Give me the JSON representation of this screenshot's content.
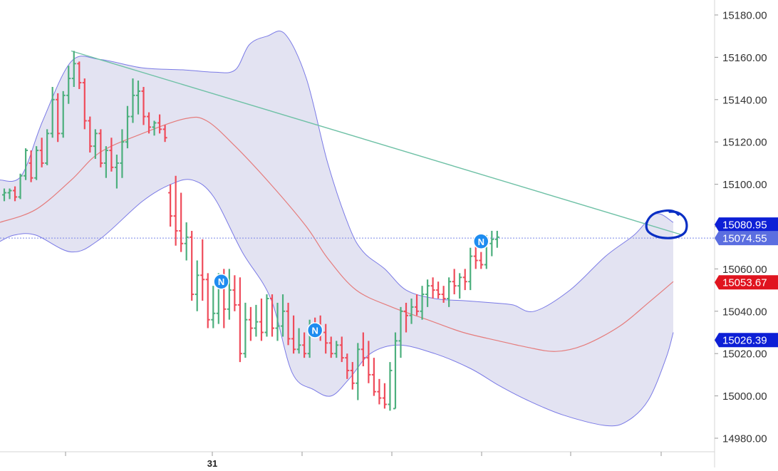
{
  "chart_data": {
    "type": "ohlc",
    "title": "",
    "x_axis": {
      "labels": [
        "31"
      ]
    },
    "y_axis": {
      "position": "right",
      "ylim": [
        14975,
        15188
      ],
      "ticks": [
        14980,
        15000,
        15020,
        15040,
        15060,
        15080,
        15100,
        15120,
        15140,
        15160,
        15180
      ],
      "tick_labels": [
        "14980.00",
        "15000.00",
        "15020.00",
        "15040.00",
        "15060.00",
        "15080.00",
        "15100.00",
        "15120.00",
        "15140.00",
        "15160.00",
        "15180.00"
      ]
    },
    "bars_ohlc": [
      [
        15095,
        15098,
        15092,
        15096
      ],
      [
        15096,
        15098,
        15093,
        15097
      ],
      [
        15097,
        15099,
        15092,
        15094
      ],
      [
        15094,
        15105,
        15093,
        15104
      ],
      [
        15104,
        15117,
        15102,
        15116
      ],
      [
        15110,
        15116,
        15101,
        15103
      ],
      [
        15103,
        15118,
        15102,
        15116
      ],
      [
        15116,
        15122,
        15108,
        15110
      ],
      [
        15110,
        15126,
        15109,
        15124
      ],
      [
        15124,
        15146,
        15122,
        15140
      ],
      [
        15140,
        15143,
        15120,
        15124
      ],
      [
        15124,
        15144,
        15122,
        15142
      ],
      [
        15142,
        15156,
        15138,
        15150
      ],
      [
        15150,
        15163,
        15146,
        15157
      ],
      [
        15157,
        15158,
        15145,
        15148
      ],
      [
        15148,
        15150,
        15126,
        15130
      ],
      [
        15130,
        15132,
        15115,
        15118
      ],
      [
        15118,
        15126,
        15112,
        15124
      ],
      [
        15124,
        15126,
        15108,
        15110
      ],
      [
        15110,
        15118,
        15103,
        15116
      ],
      [
        15116,
        15122,
        15106,
        15108
      ],
      [
        15108,
        15114,
        15098,
        15110
      ],
      [
        15110,
        15126,
        15103,
        15120
      ],
      [
        15120,
        15137,
        15117,
        15132
      ],
      [
        15132,
        15150,
        15129,
        15142
      ],
      [
        15142,
        15149,
        15133,
        15144
      ],
      [
        15144,
        15146,
        15128,
        15132
      ],
      [
        15132,
        15134,
        15124,
        15127
      ],
      [
        15127,
        15130,
        15123,
        15129
      ],
      [
        15129,
        15133,
        15124,
        15126
      ],
      [
        15126,
        15128,
        15120,
        15122
      ],
      [
        15096,
        15100,
        15080,
        15085
      ],
      [
        15085,
        15104,
        15071,
        15078
      ],
      [
        15078,
        15096,
        15068,
        15072
      ],
      [
        15072,
        15082,
        15064,
        15075
      ],
      [
        15075,
        15078,
        15045,
        15048
      ],
      [
        15048,
        15064,
        15040,
        15057
      ],
      [
        15057,
        15074,
        15045,
        15055
      ],
      [
        15055,
        15058,
        15032,
        15036
      ],
      [
        15036,
        15052,
        15032,
        15039
      ],
      [
        15039,
        15058,
        15034,
        15052
      ],
      [
        15052,
        15060,
        15032,
        15041
      ],
      [
        15041,
        15060,
        15036,
        15050
      ],
      [
        15050,
        15057,
        15040,
        15043
      ],
      [
        15043,
        15056,
        15016,
        15020
      ],
      [
        15020,
        15044,
        15018,
        15036
      ],
      [
        15036,
        15042,
        15026,
        15032
      ],
      [
        15032,
        15043,
        15028,
        15035
      ],
      [
        15035,
        15046,
        15026,
        15030
      ],
      [
        15030,
        15048,
        15028,
        15046
      ],
      [
        15046,
        15048,
        15028,
        15032
      ],
      [
        15032,
        15044,
        15026,
        15033
      ],
      [
        15033,
        15048,
        15028,
        15040
      ],
      [
        15040,
        15044,
        15024,
        15027
      ],
      [
        15027,
        15038,
        15020,
        15022
      ],
      [
        15022,
        15032,
        15020,
        15024
      ],
      [
        15024,
        15030,
        15018,
        15020
      ],
      [
        15020,
        15036,
        15018,
        15032
      ],
      [
        15032,
        15037,
        15028,
        15031
      ],
      [
        15031,
        15038,
        15026,
        15030
      ],
      [
        15030,
        15034,
        15020,
        15025
      ],
      [
        15025,
        15028,
        15018,
        15020
      ],
      [
        15020,
        15026,
        15018,
        15024
      ],
      [
        15024,
        15028,
        15016,
        15018
      ],
      [
        15018,
        15020,
        15008,
        15012
      ],
      [
        15012,
        15016,
        15003,
        15006
      ],
      [
        15006,
        15025,
        14998,
        15022
      ],
      [
        15022,
        15030,
        15014,
        15018
      ],
      [
        15018,
        15026,
        15006,
        15010
      ],
      [
        15010,
        15018,
        15000,
        15002
      ],
      [
        15002,
        15008,
        14996,
        14999
      ],
      [
        14999,
        15006,
        14994,
        14996
      ],
      [
        14996,
        15016,
        14993,
        15012
      ],
      [
        14994,
        15030,
        14994,
        15026
      ],
      [
        15026,
        15042,
        15018,
        15040
      ],
      [
        15040,
        15044,
        15030,
        15038
      ],
      [
        15038,
        15046,
        15034,
        15042
      ],
      [
        15042,
        15048,
        15038,
        15040
      ],
      [
        15040,
        15052,
        15036,
        15048
      ],
      [
        15048,
        15055,
        15042,
        15052
      ],
      [
        15052,
        15056,
        15046,
        15050
      ],
      [
        15050,
        15054,
        15046,
        15048
      ],
      [
        15048,
        15052,
        15044,
        15046
      ],
      [
        15046,
        15056,
        15042,
        15054
      ],
      [
        15054,
        15060,
        15048,
        15052
      ],
      [
        15052,
        15058,
        15046,
        15056
      ],
      [
        15056,
        15060,
        15050,
        15054
      ],
      [
        15054,
        15070,
        15050,
        15066
      ],
      [
        15066,
        15072,
        15060,
        15064
      ],
      [
        15064,
        15068,
        15060,
        15062
      ],
      [
        15062,
        15076,
        15060,
        15072
      ],
      [
        15072,
        15078,
        15066,
        15074
      ],
      [
        15074,
        15078,
        15070,
        15075
      ]
    ],
    "bollinger_bands": {
      "upper": [
        [
          0,
          15102
        ],
        [
          30,
          15104
        ],
        [
          60,
          15130
        ],
        [
          100,
          15158
        ],
        [
          140,
          15159
        ],
        [
          200,
          15155
        ],
        [
          260,
          15154
        ],
        [
          300,
          15153
        ],
        [
          330,
          15154
        ],
        [
          350,
          15166
        ],
        [
          375,
          15170
        ],
        [
          400,
          15171
        ],
        [
          430,
          15150
        ],
        [
          460,
          15110
        ],
        [
          490,
          15080
        ],
        [
          510,
          15068
        ],
        [
          540,
          15060
        ],
        [
          570,
          15050
        ],
        [
          610,
          15046
        ],
        [
          650,
          15045
        ],
        [
          690,
          15044
        ],
        [
          720,
          15043
        ],
        [
          750,
          15040
        ],
        [
          800,
          15050
        ],
        [
          850,
          15066
        ],
        [
          890,
          15076
        ],
        [
          920,
          15086
        ],
        [
          945,
          15082
        ]
      ],
      "middle": [
        [
          0,
          15082
        ],
        [
          50,
          15088
        ],
        [
          100,
          15102
        ],
        [
          140,
          15115
        ],
        [
          200,
          15124
        ],
        [
          260,
          15131
        ],
        [
          290,
          15130
        ],
        [
          330,
          15118
        ],
        [
          380,
          15100
        ],
        [
          430,
          15080
        ],
        [
          460,
          15065
        ],
        [
          500,
          15050
        ],
        [
          550,
          15042
        ],
        [
          600,
          15036
        ],
        [
          650,
          15030
        ],
        [
          700,
          15026
        ],
        [
          740,
          15023
        ],
        [
          780,
          15021
        ],
        [
          820,
          15024
        ],
        [
          870,
          15033
        ],
        [
          910,
          15044
        ],
        [
          945,
          15054
        ]
      ],
      "lower": [
        [
          0,
          15073
        ],
        [
          20,
          15076
        ],
        [
          50,
          15076
        ],
        [
          100,
          15068
        ],
        [
          140,
          15074
        ],
        [
          200,
          15092
        ],
        [
          240,
          15100
        ],
        [
          270,
          15102
        ],
        [
          300,
          15094
        ],
        [
          340,
          15068
        ],
        [
          380,
          15046
        ],
        [
          410,
          15011
        ],
        [
          440,
          15003
        ],
        [
          465,
          15000
        ],
        [
          490,
          15008
        ],
        [
          520,
          15020
        ],
        [
          560,
          15024
        ],
        [
          610,
          15020
        ],
        [
          660,
          15013
        ],
        [
          700,
          15005
        ],
        [
          740,
          14998
        ],
        [
          790,
          14991
        ],
        [
          850,
          14986
        ],
        [
          880,
          14988
        ],
        [
          910,
          14998
        ],
        [
          935,
          15018
        ],
        [
          945,
          15030
        ]
      ]
    },
    "trendline": {
      "from": [
        100,
        15163
      ],
      "to": [
        958,
        15076
      ]
    },
    "current_price_line": 15074.55,
    "price_labels": [
      {
        "text": "15080.95",
        "value": 15080.95,
        "color": "#0d1fd6"
      },
      {
        "text": "15074.55",
        "value": 15074.55,
        "color": "#5b6ee0"
      },
      {
        "text": "15053.67",
        "value": 15053.67,
        "color": "#e0141f"
      },
      {
        "text": "15026.39",
        "value": 15026.39,
        "color": "#0d1fd6"
      }
    ],
    "news_markers": [
      {
        "text": "N",
        "bar": 40.5,
        "value": 15054
      },
      {
        "text": "N",
        "bar": 58,
        "value": 15031
      },
      {
        "text": "N",
        "bar": 89,
        "value": 15073
      }
    ],
    "annotation": {
      "type": "hand-drawn circle",
      "color": "#0a2fc4",
      "target_value": 15080.95
    },
    "colors": {
      "up": "#4caf7d",
      "down": "#ef4b5a",
      "band_fill": "#e3e3f2",
      "band_line": "#7a7ae6",
      "middle_line": "#e57c7c",
      "trendline": "#6fc1a6",
      "news": "#1e8cf0"
    },
    "grid": false
  }
}
